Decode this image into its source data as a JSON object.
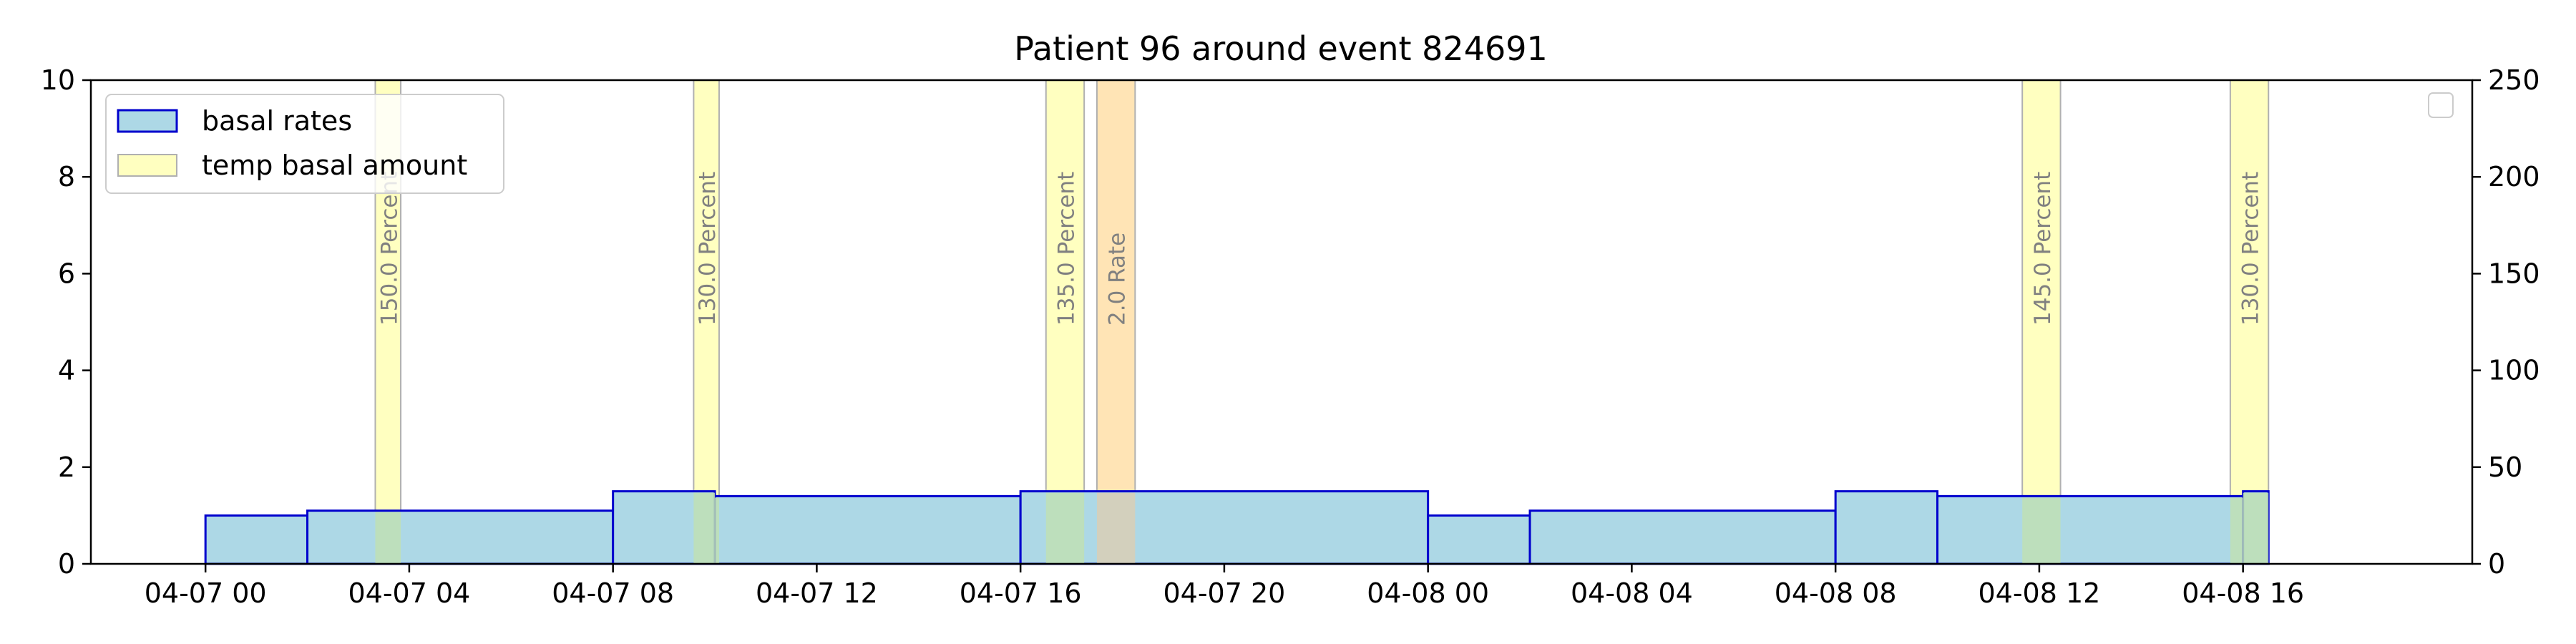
{
  "chart_data": {
    "type": "bar",
    "title": "Patient 96 around event 824691",
    "xlabel": "",
    "ylabel": "",
    "x_range": [
      "04-06 21:45",
      "04-08 20:30"
    ],
    "ylim": [
      0,
      10
    ],
    "y2lim": [
      0,
      250
    ],
    "x_ticks": [
      "04-07 00",
      "04-07 04",
      "04-07 08",
      "04-07 12",
      "04-07 16",
      "04-07 20",
      "04-08 00",
      "04-08 04",
      "04-08 08",
      "04-08 12",
      "04-08 16"
    ],
    "y_ticks": [
      "0",
      "2",
      "4",
      "6",
      "8",
      "10"
    ],
    "y2_ticks": [
      "0",
      "50",
      "100",
      "150",
      "200",
      "250"
    ],
    "grid": false,
    "legend": {
      "placement": "top-left",
      "entries": [
        "basal rates",
        "temp basal amount"
      ]
    },
    "secondary_legend": {
      "placement": "top-right",
      "entries": []
    },
    "basal_rates": [
      {
        "start": "04-07 00:00",
        "end": "04-07 02:00",
        "rate": 1.0
      },
      {
        "start": "04-07 02:00",
        "end": "04-07 08:00",
        "rate": 1.1
      },
      {
        "start": "04-07 08:00",
        "end": "04-07 10:00",
        "rate": 1.5
      },
      {
        "start": "04-07 10:00",
        "end": "04-07 16:00",
        "rate": 1.4
      },
      {
        "start": "04-07 16:00",
        "end": "04-08 00:00",
        "rate": 1.5
      },
      {
        "start": "04-08 00:00",
        "end": "04-08 02:00",
        "rate": 1.0
      },
      {
        "start": "04-08 02:00",
        "end": "04-08 08:00",
        "rate": 1.1
      },
      {
        "start": "04-08 08:00",
        "end": "04-08 10:00",
        "rate": 1.5
      },
      {
        "start": "04-08 10:00",
        "end": "04-08 16:00",
        "rate": 1.4
      },
      {
        "start": "04-08 16:00",
        "end": "04-08 16:30",
        "rate": 1.5
      }
    ],
    "temp_basal_amount": [
      {
        "start": "04-07 03:20",
        "end": "04-07 03:50",
        "label": "150.0 Percent",
        "kind": "percent"
      },
      {
        "start": "04-07 09:35",
        "end": "04-07 10:05",
        "label": "130.0 Percent",
        "kind": "percent"
      },
      {
        "start": "04-07 16:30",
        "end": "04-07 17:15",
        "label": "135.0 Percent",
        "kind": "percent"
      },
      {
        "start": "04-07 17:30",
        "end": "04-07 18:15",
        "label": "2.0 Rate",
        "kind": "rate"
      },
      {
        "start": "04-08 11:40",
        "end": "04-08 12:25",
        "label": "145.0 Percent",
        "kind": "percent"
      },
      {
        "start": "04-08 15:45",
        "end": "04-08 16:30",
        "label": "130.0 Percent",
        "kind": "percent"
      }
    ]
  },
  "colors": {
    "basal_fill": "#add8e6",
    "basal_edge": "#0000cd",
    "temp_percent_fill": "#ffffc0",
    "temp_rate_fill": "#ffe4b5",
    "temp_edge": "#b0b0b0",
    "overlap_fill": "#bfe0b4",
    "band_label": "#808080"
  }
}
